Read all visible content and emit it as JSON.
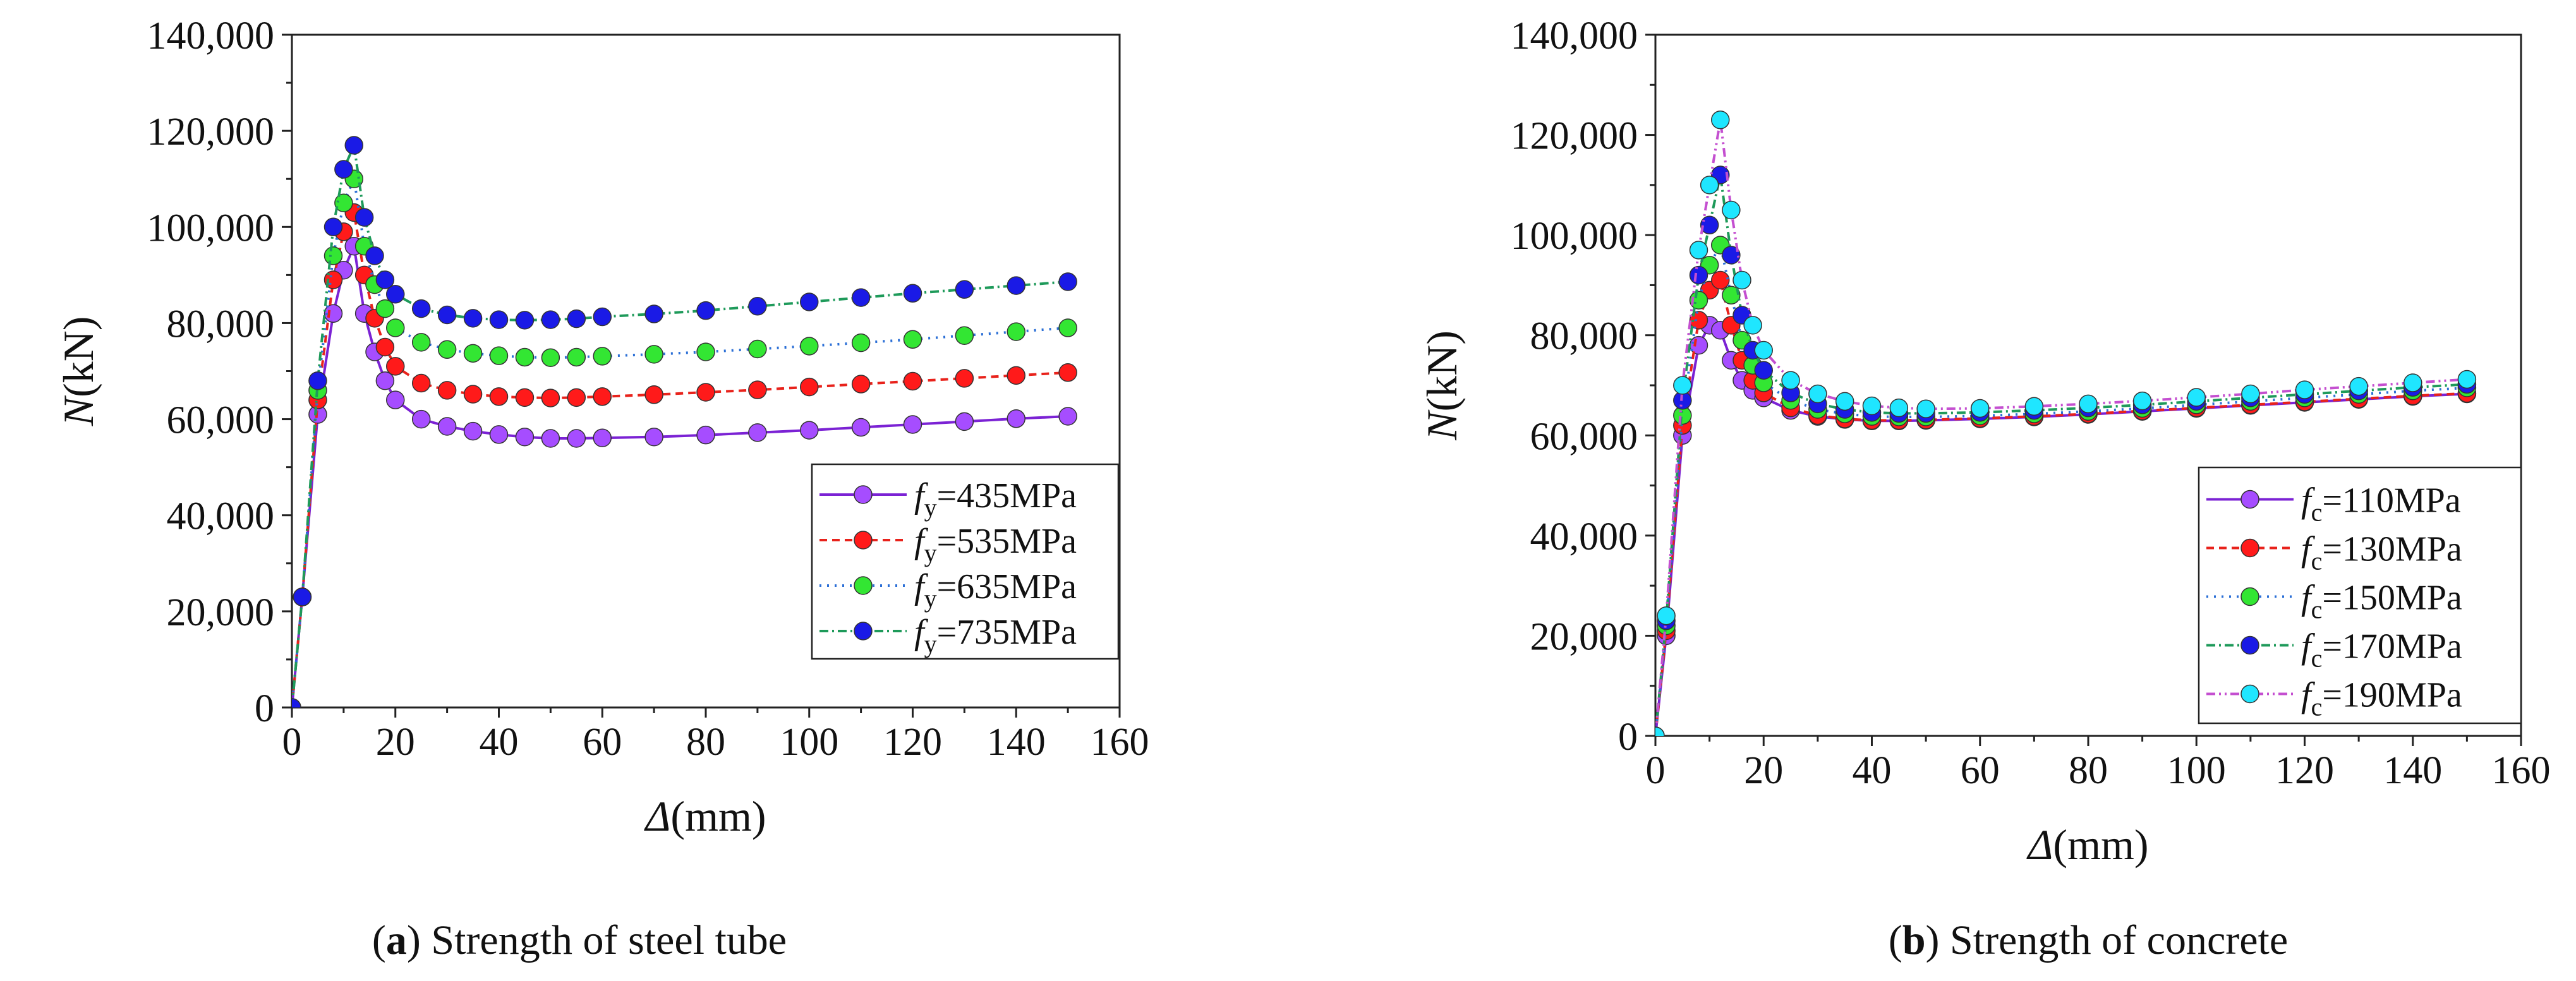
{
  "chart_data": [
    {
      "type": "line",
      "caption_letter": "a",
      "caption_text": "Strength of steel tube",
      "xlabel_symbol": "Δ",
      "xlabel_unit": "(mm)",
      "ylabel_symbol": "N",
      "ylabel_unit": "(kN)",
      "xlim": [
        0,
        160
      ],
      "ylim": [
        0,
        140000
      ],
      "xticks": [
        "0",
        "20",
        "40",
        "60",
        "80",
        "100",
        "120",
        "140",
        "160"
      ],
      "yticks": [
        "0",
        "20,000",
        "40,000",
        "60,000",
        "80,000",
        "100,000",
        "120,000",
        "140,000"
      ],
      "legend_position": "bottom-right",
      "series": [
        {
          "name": "fy=435MPa",
          "name_symbol": "f",
          "name_sub": "y",
          "name_value": "=435MPa",
          "color": "#7B22D4",
          "dash": "solid",
          "x": [
            0,
            2,
            5,
            8,
            10,
            12,
            14,
            16,
            18,
            20,
            25,
            30,
            35,
            40,
            45,
            50,
            55,
            60,
            70,
            80,
            90,
            100,
            110,
            120,
            130,
            140,
            150
          ],
          "y": [
            0,
            23000,
            61000,
            82000,
            91000,
            96000,
            82000,
            74000,
            68000,
            64000,
            60000,
            58500,
            57500,
            56800,
            56300,
            56000,
            56000,
            56100,
            56300,
            56700,
            57200,
            57700,
            58300,
            58900,
            59500,
            60100,
            60600
          ]
        },
        {
          "name": "fy=535MPa",
          "name_symbol": "f",
          "name_sub": "y",
          "name_value": "=535MPa",
          "color": "#E8221B",
          "dash": "12,8",
          "x": [
            0,
            2,
            5,
            8,
            10,
            12,
            14,
            16,
            18,
            20,
            25,
            30,
            35,
            40,
            45,
            50,
            55,
            60,
            70,
            80,
            90,
            100,
            110,
            120,
            130,
            140,
            150
          ],
          "y": [
            0,
            23000,
            64000,
            89000,
            99000,
            103000,
            90000,
            81000,
            75000,
            71000,
            67500,
            66000,
            65200,
            64700,
            64500,
            64400,
            64500,
            64700,
            65100,
            65600,
            66100,
            66700,
            67300,
            67900,
            68500,
            69100,
            69700
          ]
        },
        {
          "name": "fy=635MPa",
          "name_symbol": "f",
          "name_sub": "y",
          "name_value": "=635MPa",
          "color": "#2B6FD6",
          "dash": "3,9",
          "x": [
            0,
            2,
            5,
            8,
            10,
            12,
            14,
            16,
            18,
            20,
            25,
            30,
            35,
            40,
            45,
            50,
            55,
            60,
            70,
            80,
            90,
            100,
            110,
            120,
            130,
            140,
            150
          ],
          "y": [
            0,
            23000,
            66000,
            94000,
            105000,
            110000,
            96000,
            88000,
            83000,
            79000,
            76000,
            74500,
            73700,
            73200,
            72900,
            72800,
            72900,
            73100,
            73500,
            74000,
            74600,
            75200,
            75900,
            76600,
            77400,
            78200,
            79000
          ]
        },
        {
          "name": "fy=735MPa",
          "name_symbol": "f",
          "name_sub": "y",
          "name_value": "=735MPa",
          "color": "#1E9A5A",
          "dash": "14,6,3,6",
          "x": [
            0,
            2,
            5,
            8,
            10,
            12,
            14,
            16,
            18,
            20,
            25,
            30,
            35,
            40,
            45,
            50,
            55,
            60,
            70,
            80,
            90,
            100,
            110,
            120,
            130,
            140,
            150
          ],
          "y": [
            0,
            23000,
            68000,
            100000,
            112000,
            117000,
            102000,
            94000,
            89000,
            86000,
            83000,
            81700,
            81000,
            80700,
            80600,
            80700,
            80900,
            81300,
            81900,
            82600,
            83500,
            84400,
            85300,
            86200,
            87000,
            87800,
            88600
          ]
        }
      ],
      "marker_colors": [
        "#A64DFF",
        "#FF1A1A",
        "#33E633",
        "#1A1AE6"
      ]
    },
    {
      "type": "line",
      "caption_letter": "b",
      "caption_text": "Strength of concrete",
      "xlabel_symbol": "Δ",
      "xlabel_unit": "(mm)",
      "ylabel_symbol": "N",
      "ylabel_unit": "(kN)",
      "xlim": [
        0,
        160
      ],
      "ylim": [
        0,
        140000
      ],
      "xticks": [
        "0",
        "20",
        "40",
        "60",
        "80",
        "100",
        "120",
        "140",
        "160"
      ],
      "yticks": [
        "0",
        "20,000",
        "40,000",
        "60,000",
        "80,000",
        "100,000",
        "120,000",
        "140,000"
      ],
      "legend_position": "bottom-right",
      "series": [
        {
          "name": "fc=110MPa",
          "name_symbol": "f",
          "name_sub": "c",
          "name_value": "=110MPa",
          "color": "#7B22D4",
          "dash": "solid",
          "x": [
            0,
            2,
            5,
            8,
            10,
            12,
            14,
            16,
            18,
            20,
            25,
            30,
            35,
            40,
            45,
            50,
            60,
            70,
            80,
            90,
            100,
            110,
            120,
            130,
            140,
            150
          ],
          "y": [
            0,
            20000,
            60000,
            78000,
            82000,
            81000,
            75000,
            71000,
            69000,
            67500,
            65000,
            63800,
            63200,
            62900,
            62900,
            63000,
            63300,
            63700,
            64200,
            64800,
            65400,
            66000,
            66600,
            67200,
            67800,
            68300
          ]
        },
        {
          "name": "fc=130MPa",
          "name_symbol": "f",
          "name_sub": "c",
          "name_value": "=130MPa",
          "color": "#E8221B",
          "dash": "12,8",
          "x": [
            0,
            2,
            5,
            8,
            10,
            12,
            14,
            16,
            18,
            20,
            25,
            30,
            35,
            40,
            45,
            50,
            60,
            70,
            80,
            90,
            100,
            110,
            120,
            130,
            140,
            150
          ],
          "y": [
            0,
            21000,
            62000,
            83000,
            89000,
            91000,
            82000,
            75000,
            71000,
            68500,
            65500,
            64000,
            63300,
            63000,
            63000,
            63100,
            63400,
            63800,
            64300,
            64900,
            65500,
            66100,
            66700,
            67300,
            67900,
            68400
          ]
        },
        {
          "name": "fc=150MPa",
          "name_symbol": "f",
          "name_sub": "c",
          "name_value": "=150MPa",
          "color": "#2B6FD6",
          "dash": "3,9",
          "x": [
            0,
            2,
            5,
            8,
            10,
            12,
            14,
            16,
            18,
            20,
            25,
            30,
            35,
            40,
            45,
            50,
            60,
            70,
            80,
            90,
            100,
            110,
            120,
            130,
            140,
            150
          ],
          "y": [
            0,
            22000,
            64000,
            87000,
            94000,
            98000,
            88000,
            79000,
            74000,
            70500,
            67000,
            65200,
            64300,
            63800,
            63700,
            63700,
            63900,
            64300,
            64800,
            65400,
            66100,
            66800,
            67500,
            68200,
            68900,
            69500
          ]
        },
        {
          "name": "fc=170MPa",
          "name_symbol": "f",
          "name_sub": "c",
          "name_value": "=170MPa",
          "color": "#1E9A5A",
          "dash": "14,6,3,6",
          "x": [
            0,
            2,
            5,
            8,
            10,
            12,
            14,
            16,
            18,
            20,
            25,
            30,
            35,
            40,
            45,
            50,
            60,
            70,
            80,
            90,
            100,
            110,
            120,
            130,
            140,
            150
          ],
          "y": [
            0,
            23000,
            67000,
            92000,
            102000,
            112000,
            96000,
            84000,
            77000,
            73000,
            68500,
            66300,
            65200,
            64600,
            64400,
            64400,
            64600,
            65000,
            65500,
            66100,
            66800,
            67500,
            68200,
            68900,
            69600,
            70200
          ]
        },
        {
          "name": "fc=190MPa",
          "name_symbol": "f",
          "name_sub": "c",
          "name_value": "=190MPa",
          "color": "#C44FD0",
          "dash": "14,6,3,6,3,6",
          "x": [
            0,
            2,
            5,
            8,
            10,
            12,
            14,
            16,
            18,
            20,
            25,
            30,
            35,
            40,
            45,
            50,
            60,
            70,
            80,
            90,
            100,
            110,
            120,
            130,
            140,
            150
          ],
          "y": [
            0,
            24000,
            70000,
            97000,
            110000,
            123000,
            105000,
            91000,
            82000,
            77000,
            71000,
            68300,
            66800,
            65900,
            65500,
            65300,
            65400,
            65800,
            66300,
            66900,
            67600,
            68300,
            69100,
            69800,
            70500,
            71200
          ]
        }
      ],
      "marker_colors": [
        "#A64DFF",
        "#FF1A1A",
        "#33E633",
        "#1A1AE6",
        "#1FE6FF"
      ]
    }
  ]
}
